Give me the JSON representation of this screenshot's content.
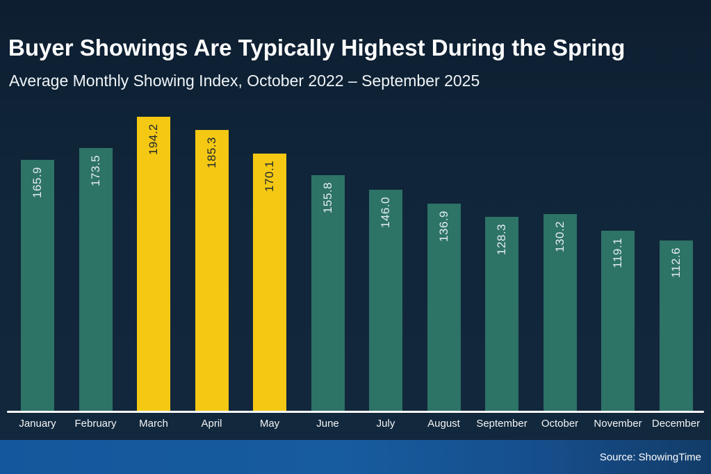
{
  "slide": {
    "title": "Buyer Showings Are Typically Highest During the Spring",
    "subtitle": "Average Monthly Showing Index, October 2022 – September 2025",
    "source": "Source: ShowingTime"
  },
  "colors": {
    "background": "#102539",
    "bar_teal": "#2d7366",
    "bar_highlight_yellow": "#f4c813",
    "value_label_on_teal": "#e6edf1",
    "value_label_on_yellow": "#1b2430",
    "month_label": "#f2f5f7",
    "axis_line": "#ffffff",
    "footer_blue_left": "#15579c",
    "footer_blue_right": "#123c68",
    "title_text": "#ffffff"
  },
  "chart_data": {
    "type": "bar",
    "title": "Buyer Showings Are Typically Highest During the Spring",
    "subtitle": "Average Monthly Showing Index, October 2022 – September 2025",
    "categories": [
      "January",
      "February",
      "March",
      "April",
      "May",
      "June",
      "July",
      "August",
      "September",
      "October",
      "November",
      "December"
    ],
    "values": [
      165.9,
      173.5,
      194.2,
      185.3,
      170.1,
      155.8,
      146.0,
      136.9,
      128.3,
      130.2,
      119.1,
      112.6
    ],
    "value_labels": [
      "165.9",
      "173.5",
      "194.2",
      "185.3",
      "170.1",
      "155.8",
      "146.0",
      "136.9",
      "128.3",
      "130.2",
      "119.1",
      "112.6"
    ],
    "highlighted_categories": [
      "March",
      "April",
      "May"
    ],
    "value_label_rotation_deg": 90,
    "ylim": [
      0,
      200
    ],
    "grid": false,
    "legend": false,
    "source": "Source: ShowingTime"
  }
}
